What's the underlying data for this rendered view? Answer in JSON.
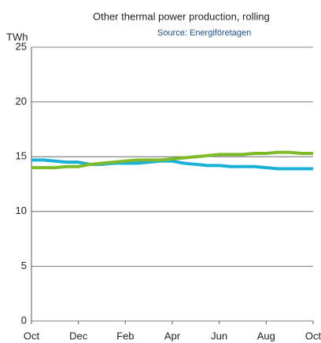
{
  "chart_data": {
    "type": "line",
    "title": "Other thermal power production, rolling",
    "subtitle": "Source: Energiföretagen",
    "y_label": "TWh",
    "categories": [
      "Oct",
      null,
      null,
      null,
      "Dec",
      null,
      null,
      null,
      "Feb",
      null,
      null,
      null,
      "Apr",
      null,
      null,
      null,
      "Jun",
      null,
      null,
      null,
      "Aug",
      null,
      null,
      null,
      "Oct"
    ],
    "series": [
      {
        "color": "#1ab0d8",
        "values": [
          14.7,
          14.7,
          14.6,
          14.5,
          14.5,
          14.3,
          14.3,
          14.4,
          14.4,
          14.4,
          14.5,
          14.6,
          14.6,
          14.4,
          14.3,
          14.2,
          14.2,
          14.1,
          14.1,
          14.1,
          14.0,
          13.9,
          13.9,
          13.9,
          13.9
        ]
      },
      {
        "color": "#7fba2a",
        "values": [
          14.0,
          14.0,
          14.0,
          14.1,
          14.1,
          14.3,
          14.4,
          14.5,
          14.6,
          14.7,
          14.7,
          14.7,
          14.8,
          14.9,
          15.0,
          15.1,
          15.2,
          15.2,
          15.2,
          15.3,
          15.3,
          15.4,
          15.4,
          15.3,
          15.3
        ]
      }
    ],
    "ylim": [
      0,
      25
    ],
    "yticks": [
      0,
      5,
      10,
      15,
      20,
      25
    ],
    "grid": true
  }
}
